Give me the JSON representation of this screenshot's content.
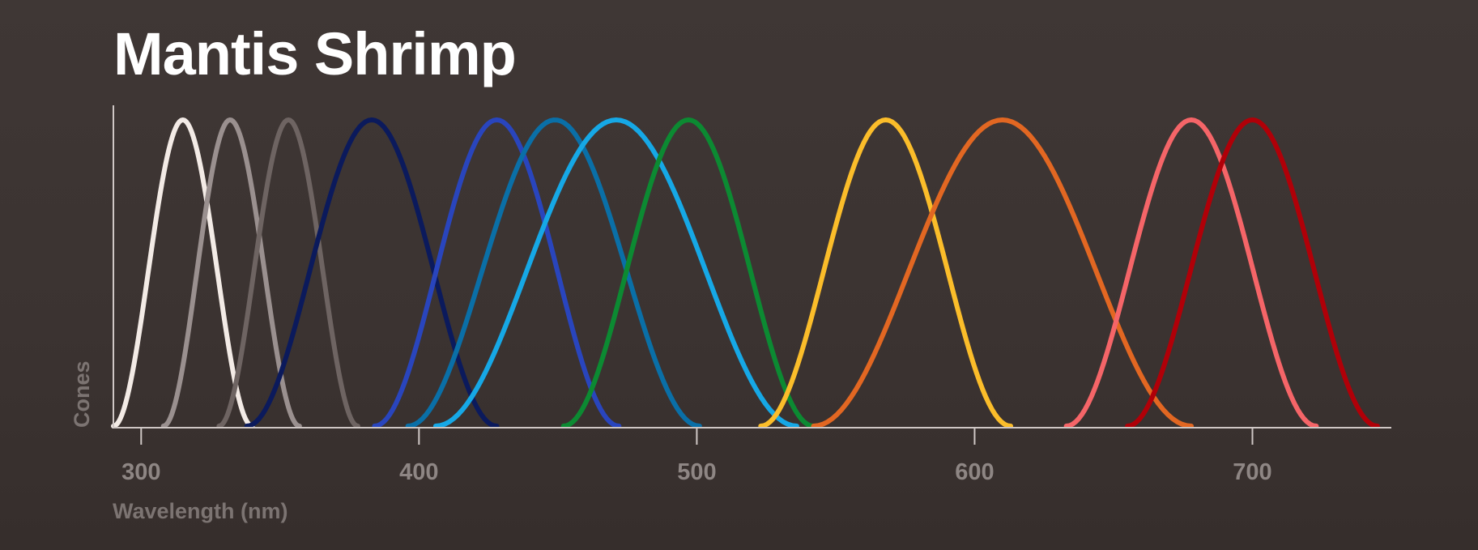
{
  "chart_data": {
    "type": "line",
    "title": "Mantis Shrimp",
    "xlabel": "Wavelength (nm)",
    "ylabel": "Cones",
    "xlim": [
      290,
      750
    ],
    "ylim": [
      0,
      1
    ],
    "x_ticks": [
      300,
      400,
      500,
      600,
      700
    ],
    "grid": false,
    "legend": "none",
    "series": [
      {
        "peak": 315,
        "start": 290,
        "end": 340,
        "color": "#f3ebe6"
      },
      {
        "peak": 332,
        "start": 308,
        "end": 357,
        "color": "#9a908f"
      },
      {
        "peak": 353,
        "start": 328,
        "end": 378,
        "color": "#6e6462"
      },
      {
        "peak": 383,
        "start": 338,
        "end": 428,
        "color": "#0b1a5c"
      },
      {
        "peak": 428,
        "start": 384,
        "end": 472,
        "color": "#2945bd"
      },
      {
        "peak": 449,
        "start": 396,
        "end": 501,
        "color": "#0a6fa7"
      },
      {
        "peak": 471,
        "start": 406,
        "end": 536,
        "color": "#16a8e6"
      },
      {
        "peak": 497,
        "start": 452,
        "end": 542,
        "color": "#0c8a32"
      },
      {
        "peak": 568,
        "start": 523,
        "end": 613,
        "color": "#fbbd2a"
      },
      {
        "peak": 610,
        "start": 542,
        "end": 678,
        "color": "#e26722"
      },
      {
        "peak": 678,
        "start": 633,
        "end": 723,
        "color": "#f56568"
      },
      {
        "peak": 700,
        "start": 655,
        "end": 745,
        "color": "#b00008"
      }
    ]
  }
}
